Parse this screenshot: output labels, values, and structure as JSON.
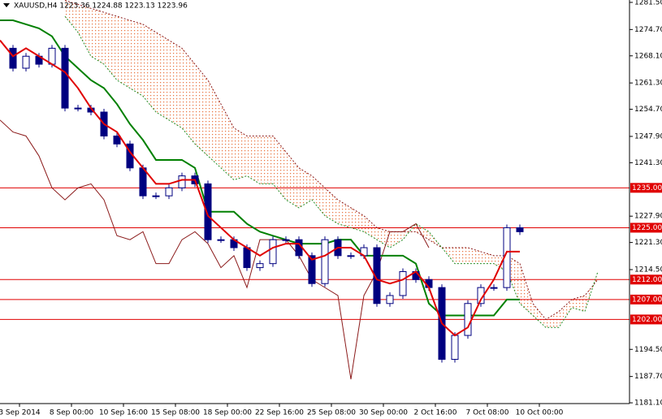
{
  "chart_data": {
    "type": "ichimoku",
    "title": "XAUUSD,H4  1223.36 1224.88 1223.13 1223.96",
    "xlim": [
      0,
      194
    ],
    "ylim": [
      1180.3,
      1282.1
    ],
    "x": [
      0,
      4,
      8,
      12,
      16,
      20,
      24,
      28,
      32,
      36,
      40,
      44,
      48,
      52,
      56,
      60,
      64,
      68,
      72,
      76,
      80,
      84,
      88,
      92,
      96,
      100,
      104,
      108,
      112,
      116,
      120,
      124,
      128,
      132,
      136,
      140,
      144,
      148,
      152,
      156,
      160,
      164,
      168,
      172,
      176,
      180,
      184,
      188
    ],
    "xticks": [
      {
        "value": 6,
        "label": "3 Sep 2014"
      },
      {
        "value": 22,
        "label": "8 Sep 00:00"
      },
      {
        "value": 38,
        "label": "10 Sep 16:00"
      },
      {
        "value": 54,
        "label": "15 Sep 08:00"
      },
      {
        "value": 70,
        "label": "18 Sep 00:00"
      },
      {
        "value": 86,
        "label": "22 Sep 16:00"
      },
      {
        "value": 102,
        "label": "25 Sep 08:00"
      },
      {
        "value": 118,
        "label": "30 Sep 00:00"
      },
      {
        "value": 134,
        "label": "2 Oct 16:00"
      },
      {
        "value": 150,
        "label": "7 Oct 08:00"
      },
      {
        "value": 166,
        "label": "10 Oct 00:00"
      }
    ],
    "yticks": [
      {
        "value": 1281.5,
        "label": "1281.50"
      },
      {
        "value": 1274.7,
        "label": "1274.70"
      },
      {
        "value": 1268.1,
        "label": "1268.10"
      },
      {
        "value": 1261.3,
        "label": "1261.30"
      },
      {
        "value": 1254.7,
        "label": "1254.70"
      },
      {
        "value": 1247.9,
        "label": "1247.90"
      },
      {
        "value": 1241.3,
        "label": "1241.30"
      },
      {
        "value": 1227.9,
        "label": "1227.90"
      },
      {
        "value": 1221.3,
        "label": "1221.30"
      },
      {
        "value": 1214.5,
        "label": "1214.50"
      },
      {
        "value": 1194.5,
        "label": "1194.50"
      },
      {
        "value": 1187.7,
        "label": "1187.70"
      },
      {
        "value": 1181.1,
        "label": "1181.10"
      }
    ],
    "levels": {
      "color": "#e00000",
      "values": [
        1235,
        1225,
        1212,
        1207,
        1202
      ],
      "value_labels": [
        "1235.00",
        "1225.00",
        "1212.00",
        "1207.00",
        "1202.00"
      ]
    },
    "cloud_color": "#e8703a",
    "series": [
      {
        "style": "cloud-edge",
        "color": "#8b1a1a",
        "values": [
          null,
          null,
          null,
          null,
          null,
          1282,
          1281,
          1280,
          1279,
          1278,
          1277,
          1276,
          1274,
          1272,
          1270,
          1266,
          1262,
          1256,
          1250,
          1248,
          1248,
          1248,
          1244,
          1240,
          1238,
          1235,
          1232,
          1230,
          1228,
          1225,
          1224,
          1224,
          1224,
          1222,
          1220,
          1220,
          1220,
          1219,
          1218,
          1218,
          1216,
          1206,
          1202,
          1204,
          1207,
          1208,
          1212,
          null
        ]
      },
      {
        "style": "cloud-edge",
        "color": "#228b22",
        "values": [
          null,
          null,
          null,
          null,
          null,
          1278,
          1274,
          1268,
          1266,
          1262,
          1260,
          1258,
          1254,
          1252,
          1250,
          1246,
          1243,
          1240,
          1237,
          1238,
          1236,
          1236,
          1232,
          1230,
          1232,
          1228,
          1226,
          1225,
          1224,
          1222,
          1220,
          1222,
          1226,
          1224,
          1220,
          1216,
          1216,
          1216,
          1216,
          1214,
          1206,
          1203,
          1200,
          1200,
          1205,
          1204,
          1214,
          null
        ]
      },
      {
        "style": "thin",
        "color": "#8b1a1a",
        "values": [
          1252,
          1249,
          1248,
          1243,
          1235,
          1232,
          1235,
          1236,
          1232,
          1223,
          1222,
          1224,
          1216,
          1216,
          1222,
          1224,
          1221,
          1215,
          1218,
          1210,
          1222,
          1222,
          1222,
          1218,
          1212,
          1210,
          1208,
          1187,
          1208,
          1214,
          1224,
          1224,
          1226,
          1220,
          null,
          null,
          null,
          null,
          null,
          null,
          null,
          null,
          null,
          null,
          null,
          null,
          null,
          null
        ]
      },
      {
        "style": "line",
        "color": "#008000",
        "values": [
          1277,
          1277,
          1276,
          1275,
          1273,
          1268,
          1265,
          1262,
          1260,
          1256,
          1251,
          1247,
          1242,
          1242,
          1242,
          1240,
          1229,
          1229,
          1229,
          1226,
          1224,
          1223,
          1222,
          1221,
          1221,
          1221,
          1222,
          1222,
          1218,
          1218,
          1218,
          1218,
          1216,
          1206,
          1203,
          1203,
          1203,
          1203,
          1203,
          1207,
          1207,
          null,
          null,
          null,
          null,
          null,
          null,
          null
        ]
      },
      {
        "style": "candle",
        "color": "#000080",
        "values": [
          1270,
          1265,
          1268,
          1266,
          1270,
          1255,
          1255,
          1254,
          1248,
          1246,
          1240,
          1233,
          1233,
          1235,
          1238,
          1236,
          1222,
          1222,
          1220,
          1215,
          1216,
          1222,
          1222,
          1218,
          1211,
          1222,
          1218,
          1218,
          1220,
          1206,
          1208,
          1214,
          1212,
          1210,
          1192,
          1198,
          1206,
          1210,
          1210,
          1225,
          1224,
          null,
          null,
          null,
          null,
          null,
          null,
          null
        ]
      },
      {
        "style": "line",
        "color": "#e00000",
        "values": [
          1272,
          1268,
          1270,
          1268,
          1266,
          1264,
          1260,
          1255,
          1251,
          1249,
          1244,
          1240,
          1236,
          1236,
          1237,
          1237,
          1228,
          1225,
          1222,
          1220,
          1218,
          1220,
          1221,
          1221,
          1217,
          1218,
          1220,
          1220,
          1218,
          1212,
          1211,
          1212,
          1214,
          1210,
          1201,
          1198,
          1200,
          1207,
          1212,
          1219,
          1219,
          null,
          null,
          null,
          null,
          null,
          null,
          null
        ]
      }
    ]
  }
}
